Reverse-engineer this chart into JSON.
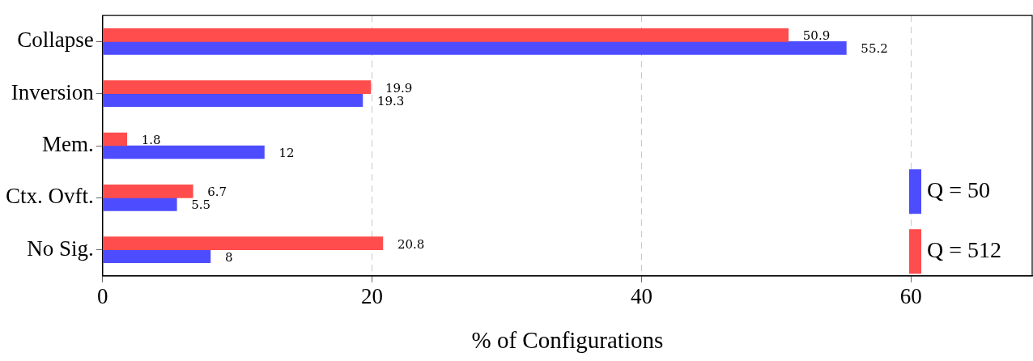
{
  "chart_data": {
    "type": "bar",
    "orientation": "horizontal",
    "xlabel": "% of Configurations",
    "categories": [
      "Collapse",
      "Inversion",
      "Mem.",
      "Ctx. Ovft.",
      "No Sig."
    ],
    "series": [
      {
        "name": "Q = 50",
        "color": "#4d4dff",
        "values": [
          55.2,
          19.3,
          12,
          5.5,
          8
        ]
      },
      {
        "name": "Q = 512",
        "color": "#ff4d4d",
        "values": [
          50.9,
          19.9,
          1.8,
          6.7,
          20.8
        ]
      }
    ],
    "xlim": [
      0,
      69
    ],
    "xticks": [
      0,
      20,
      40,
      60
    ],
    "grid": "x",
    "legend": "right",
    "data_labels": true
  }
}
